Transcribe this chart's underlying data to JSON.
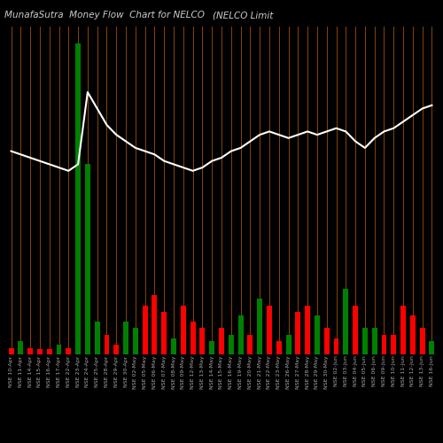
{
  "title": "MunafaSutra  Money Flow  Chart for NELCO",
  "title2": "(NELCO Limit",
  "bg_color": "#000000",
  "grid_color": "#8B4500",
  "bar_colors": [
    "red",
    "green",
    "red",
    "red",
    "red",
    "green",
    "red",
    "green",
    "green",
    "green",
    "red",
    "red",
    "green",
    "green",
    "red",
    "red",
    "red",
    "green",
    "red",
    "red",
    "red",
    "green",
    "red",
    "green",
    "green",
    "red",
    "green",
    "red",
    "red",
    "green",
    "red",
    "red",
    "green",
    "red",
    "red",
    "green",
    "red",
    "green",
    "green",
    "red",
    "red",
    "red",
    "red",
    "red",
    "green"
  ],
  "bar_heights": [
    2,
    4,
    2,
    1.5,
    1.5,
    3,
    2,
    95,
    58,
    10,
    6,
    3,
    10,
    8,
    15,
    18,
    13,
    5,
    15,
    10,
    8,
    4,
    8,
    6,
    12,
    6,
    17,
    15,
    4,
    6,
    13,
    15,
    12,
    8,
    5,
    20,
    15,
    8,
    8,
    6,
    6,
    15,
    12,
    8,
    4
  ],
  "line_values": [
    62,
    61,
    60,
    59,
    58,
    57,
    56,
    58,
    80,
    75,
    70,
    67,
    65,
    63,
    62,
    61,
    59,
    58,
    57,
    56,
    57,
    59,
    60,
    62,
    63,
    65,
    67,
    68,
    67,
    66,
    67,
    68,
    67,
    68,
    69,
    68,
    65,
    63,
    66,
    68,
    69,
    71,
    73,
    75,
    76
  ],
  "xlabel_labels": [
    "NSE 10-Apr",
    "NSE 11-Apr",
    "NSE 14-Apr",
    "NSE 15-Apr",
    "NSE 16-Apr",
    "NSE 17-Apr",
    "NSE 22-Apr",
    "NSE 23-Apr",
    "NSE 24-Apr",
    "NSE 25-Apr",
    "NSE 28-Apr",
    "NSE 29-Apr",
    "NSE 30-Apr",
    "NSE 02-May",
    "NSE 05-May",
    "NSE 06-May",
    "NSE 07-May",
    "NSE 08-May",
    "NSE 09-May",
    "NSE 12-May",
    "NSE 13-May",
    "NSE 14-May",
    "NSE 15-May",
    "NSE 16-May",
    "NSE 19-May",
    "NSE 20-May",
    "NSE 21-May",
    "NSE 22-May",
    "NSE 23-May",
    "NSE 26-May",
    "NSE 27-May",
    "NSE 28-May",
    "NSE 29-May",
    "NSE 30-May",
    "NSE 02-Jun",
    "NSE 03-Jun",
    "NSE 04-Jun",
    "NSE 05-Jun",
    "NSE 06-Jun",
    "NSE 09-Jun",
    "NSE 10-Jun",
    "NSE 11-Jun",
    "NSE 12-Jun",
    "NSE 13-Jun",
    "NSE 16-Jun"
  ],
  "n_bars": 45,
  "line_color": "#ffffff",
  "line_width": 1.5,
  "bar_width": 0.55,
  "title_color": "#cccccc",
  "title_fontsize": 7.5,
  "label_fontsize": 4.5,
  "label_color": "#aaaaaa",
  "ylim_max": 100
}
